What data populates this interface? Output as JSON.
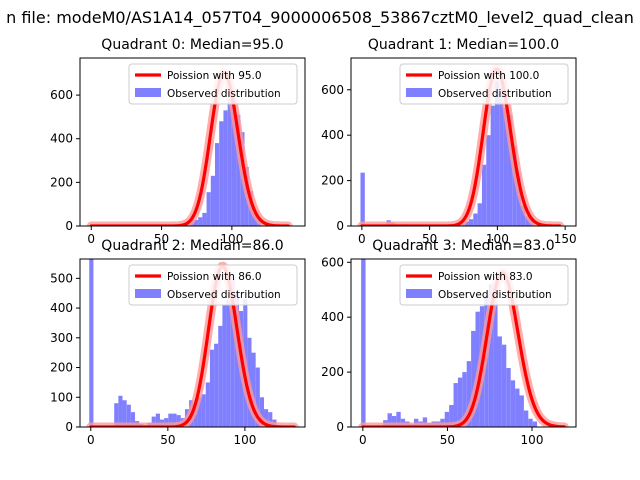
{
  "figure": {
    "suptitle": "n file: modeM0/AS1A14_057T04_9000006508_53867cztM0_level2_quad_clean"
  },
  "colors": {
    "hist": "#8080ff",
    "poisson": "#ff0000",
    "poisson_glow": "#ff9999",
    "axes": "#000000",
    "background": "#ffffff"
  },
  "chart_data": [
    {
      "type": "bar",
      "title": "Quadrant 0: Median=95.0",
      "xlim": [
        -8,
        152
      ],
      "ylim": [
        0,
        770
      ],
      "xticks": [
        0,
        50,
        100
      ],
      "yticks": [
        0,
        200,
        400,
        600
      ],
      "legend": {
        "position": "top-right",
        "entries": [
          "Poission with 95.0",
          "Observed distribution"
        ]
      },
      "poisson_mean": 95,
      "poisson_range": [
        0,
        140
      ],
      "hist": {
        "bin_width": 3,
        "edges_start": 61,
        "values": [
          0,
          0,
          15,
          30,
          28,
          40,
          60,
          155,
          230,
          380,
          480,
          530,
          650,
          590,
          510,
          430,
          270,
          160,
          60,
          30,
          0
        ]
      }
    },
    {
      "type": "bar",
      "title": "Quadrant 1: Median=100.0",
      "xlim": [
        -8,
        158
      ],
      "ylim": [
        0,
        740
      ],
      "xticks": [
        0,
        50,
        100,
        150
      ],
      "yticks": [
        0,
        200,
        400,
        600
      ],
      "legend": {
        "position": "top-right",
        "entries": [
          "Poission with 100.0",
          "Observed distribution"
        ]
      },
      "poisson_mean": 100,
      "poisson_range": [
        0,
        146
      ],
      "hist": {
        "bin_width": 3.2,
        "edges_start": -1,
        "values": [
          235,
          0,
          0,
          0,
          0,
          0,
          25,
          15,
          0,
          8,
          8,
          5,
          0,
          5,
          0,
          0,
          0,
          0,
          0,
          0,
          0,
          5,
          10,
          10,
          20,
          30,
          55,
          100,
          270,
          400,
          530,
          640,
          610,
          520,
          490,
          350,
          220,
          90,
          45,
          35,
          0
        ]
      }
    },
    {
      "type": "bar",
      "title": "Quadrant 2: Median=86.0",
      "xlim": [
        -7,
        139
      ],
      "ylim": [
        0,
        565
      ],
      "xticks": [
        0,
        50,
        100
      ],
      "yticks": [
        0,
        100,
        200,
        300,
        400,
        500
      ],
      "legend": {
        "position": "top-right",
        "entries": [
          "Poission with 86.0",
          "Observed distribution"
        ]
      },
      "poisson_mean": 86,
      "poisson_range": [
        0,
        132
      ],
      "hist": {
        "bin_width": 2.7,
        "edges_start": -1,
        "values": [
          565,
          0,
          0,
          0,
          0,
          0,
          80,
          105,
          90,
          75,
          50,
          20,
          10,
          5,
          15,
          35,
          45,
          25,
          30,
          45,
          45,
          40,
          30,
          60,
          90,
          80,
          100,
          110,
          150,
          260,
          280,
          340,
          410,
          430,
          500,
          450,
          390,
          430,
          300,
          250,
          200,
          100,
          60,
          50,
          25,
          0
        ]
      }
    },
    {
      "type": "bar",
      "title": "Quadrant 3: Median=83.0",
      "xlim": [
        -7,
        126
      ],
      "ylim": [
        0,
        612
      ],
      "xticks": [
        0,
        50,
        100
      ],
      "yticks": [
        0,
        200,
        400,
        600
      ],
      "legend": {
        "position": "top-right",
        "entries": [
          "Poission with 83.0",
          "Observed distribution"
        ]
      },
      "poisson_mean": 83,
      "poisson_range": [
        0,
        119
      ],
      "hist": {
        "bin_width": 2.6,
        "edges_start": -1,
        "values": [
          612,
          0,
          0,
          0,
          0,
          25,
          50,
          40,
          55,
          30,
          20,
          10,
          30,
          20,
          35,
          15,
          20,
          20,
          30,
          55,
          80,
          160,
          180,
          200,
          240,
          350,
          420,
          440,
          480,
          520,
          490,
          330,
          300,
          215,
          170,
          140,
          115,
          60,
          30,
          20,
          0
        ]
      }
    }
  ]
}
